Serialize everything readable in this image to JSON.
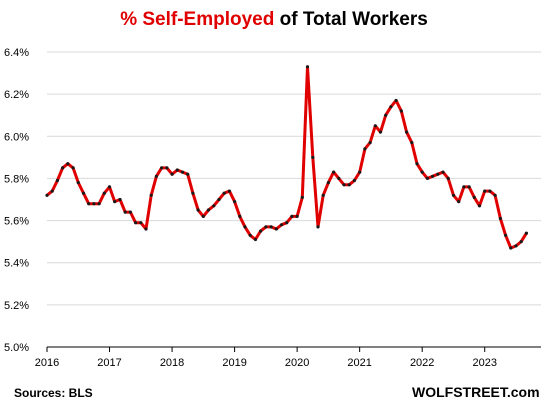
{
  "title": {
    "part1": "% Self-Employed",
    "part2": "of Total Workers"
  },
  "source": "Sources: BLS",
  "brand": "WOLFSTREET.com",
  "colors": {
    "line": "#e00000",
    "marker": "#1a1a1a",
    "title_accent": "#e00000",
    "grid": "#d9d9d9",
    "axis": "#000000"
  },
  "chart_data": {
    "type": "line",
    "title": "% Self-Employed of Total Workers",
    "xlabel": "",
    "ylabel": "",
    "ylim": [
      5.0,
      6.4
    ],
    "xlim": [
      2016.0,
      2023.9
    ],
    "yticks": [
      5.0,
      5.2,
      5.4,
      5.6,
      5.8,
      6.0,
      6.2,
      6.4
    ],
    "ytick_labels": [
      "5.0%",
      "5.2%",
      "5.4%",
      "5.6%",
      "5.8%",
      "6.0%",
      "6.2%",
      "6.4%"
    ],
    "xticks": [
      2016,
      2017,
      2018,
      2019,
      2020,
      2021,
      2022,
      2023
    ],
    "xtick_labels": [
      "2016",
      "2017",
      "2018",
      "2019",
      "2020",
      "2021",
      "2022",
      "2023"
    ],
    "grid": "horizontal",
    "series": [
      {
        "start": "2016-01",
        "frequency": "monthly",
        "values": [
          5.72,
          5.74,
          5.79,
          5.85,
          5.87,
          5.85,
          5.78,
          5.73,
          5.68,
          5.68,
          5.68,
          5.73,
          5.76,
          5.69,
          5.7,
          5.64,
          5.64,
          5.59,
          5.59,
          5.56,
          5.72,
          5.81,
          5.85,
          5.85,
          5.82,
          5.84,
          5.83,
          5.82,
          5.73,
          5.65,
          5.62,
          5.65,
          5.67,
          5.7,
          5.73,
          5.74,
          5.69,
          5.62,
          5.57,
          5.53,
          5.51,
          5.55,
          5.57,
          5.57,
          5.56,
          5.58,
          5.59,
          5.62,
          5.62,
          5.71,
          6.33,
          5.9,
          5.57,
          5.72,
          5.78,
          5.83,
          5.8,
          5.77,
          5.77,
          5.79,
          5.83,
          5.94,
          5.97,
          6.05,
          6.02,
          6.1,
          6.14,
          6.17,
          6.12,
          6.02,
          5.97,
          5.87,
          5.83,
          5.8,
          5.81,
          5.82,
          5.83,
          5.8,
          5.72,
          5.69,
          5.76,
          5.76,
          5.71,
          5.67,
          5.74,
          5.74,
          5.72,
          5.61,
          5.53,
          5.47,
          5.48,
          5.5,
          5.54
        ]
      }
    ]
  }
}
